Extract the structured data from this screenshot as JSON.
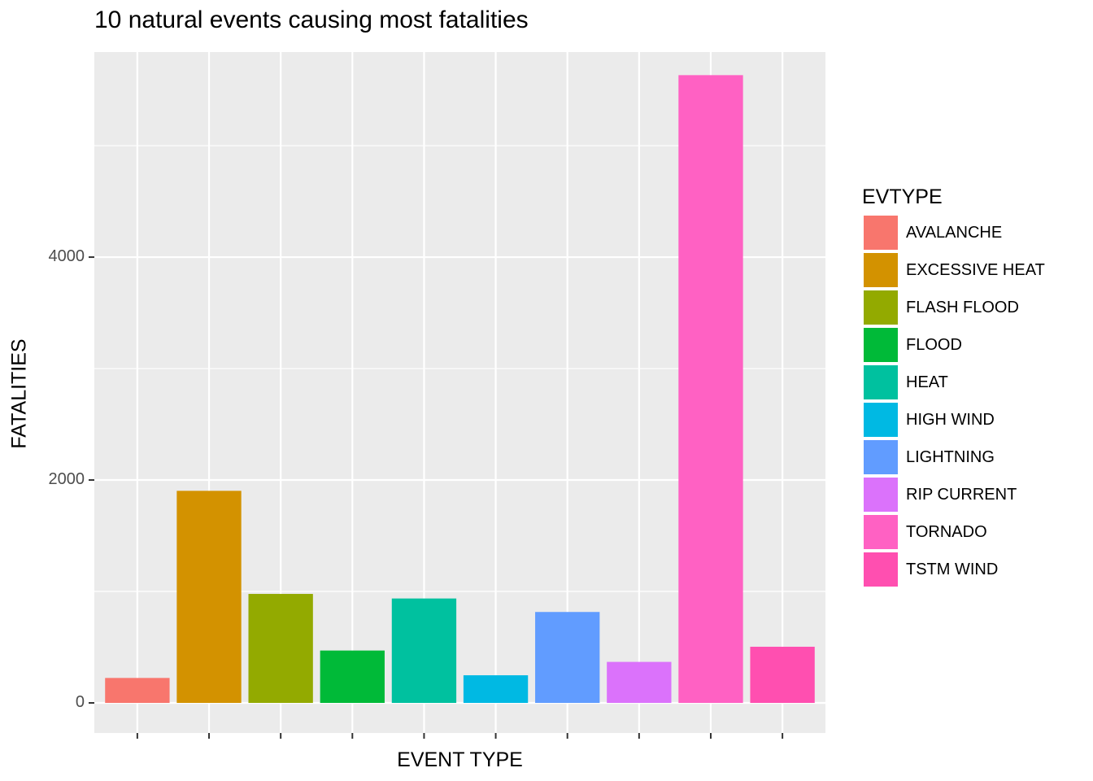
{
  "chart_data": {
    "type": "bar",
    "title": "10 natural events causing most fatalities",
    "xlabel": "EVENT TYPE",
    "ylabel": "FATALITIES",
    "legend_title": "EVTYPE",
    "legend_position": "right",
    "grid": true,
    "x_tick_labels_shown": false,
    "ylim": [
      -270,
      5840
    ],
    "yticks": [
      0,
      2000,
      4000
    ],
    "categories": [
      "AVALANCHE",
      "EXCESSIVE HEAT",
      "FLASH FLOOD",
      "FLOOD",
      "HEAT",
      "HIGH WIND",
      "LIGHTNING",
      "RIP CURRENT",
      "TORNADO",
      "TSTM WIND"
    ],
    "values": [
      224,
      1903,
      978,
      470,
      937,
      248,
      816,
      368,
      5633,
      504
    ],
    "colors": [
      "#F8766D",
      "#D39200",
      "#93AA00",
      "#00BA38",
      "#00C19F",
      "#00B9E3",
      "#619CFF",
      "#DB72FB",
      "#FF61C3",
      "#FF4FB0"
    ]
  }
}
